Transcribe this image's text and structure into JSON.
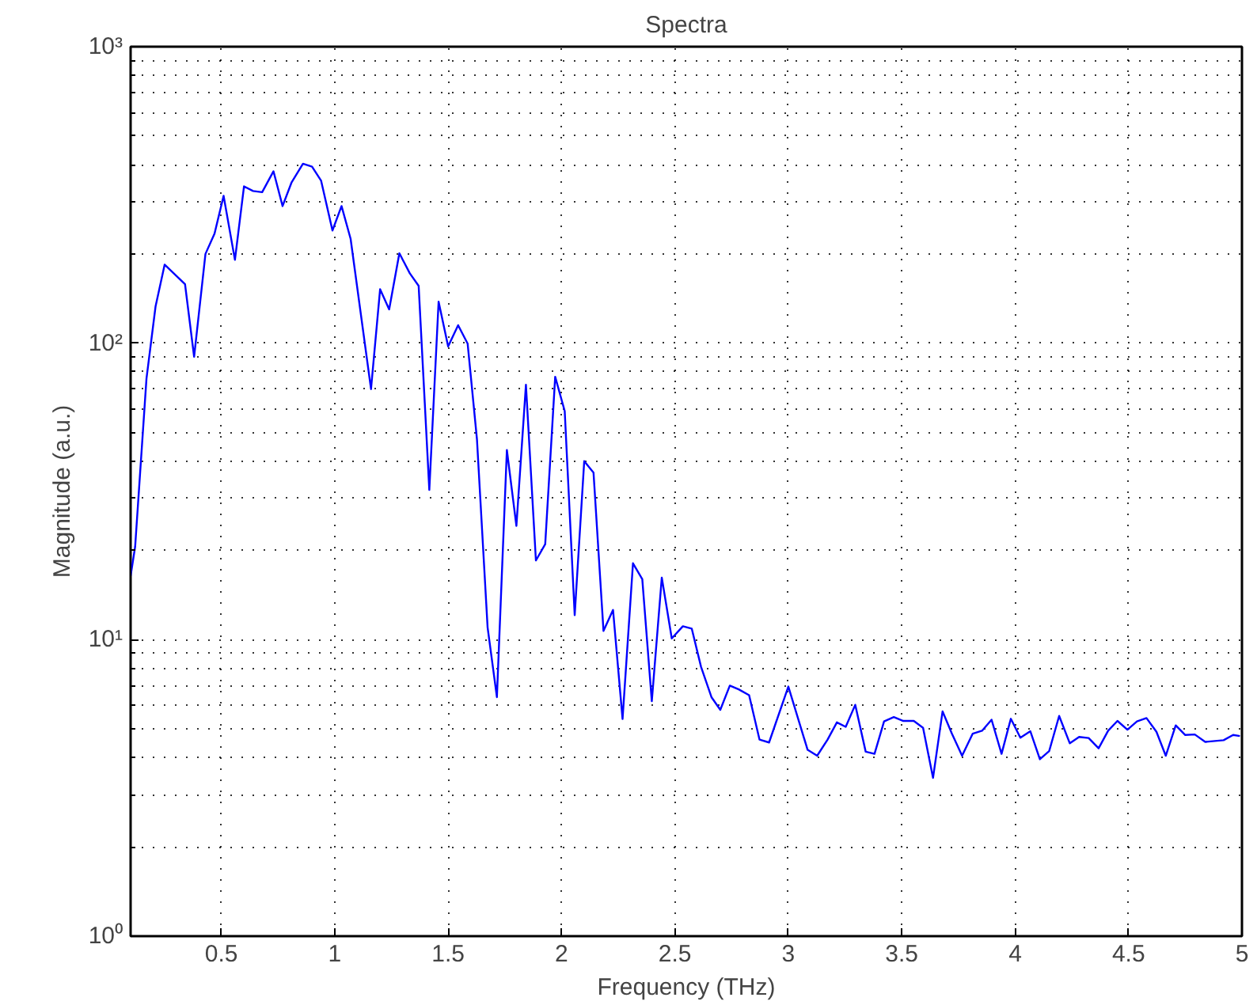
{
  "chart_data": {
    "type": "line",
    "title": "Spectra",
    "xlabel": "Frequency (THz)",
    "ylabel": "Magnitude (a.u.)",
    "log": "y",
    "grid": true,
    "marker": "none",
    "line_style": "solid",
    "xlim": [
      0.1,
      5
    ],
    "ylim": [
      1,
      1000
    ],
    "xticks": [
      0.5,
      1,
      1.5,
      2,
      2.5,
      3,
      3.5,
      4,
      4.5,
      5
    ],
    "yticks": [
      {
        "value": 1,
        "label": "10⁰"
      },
      {
        "value": 10,
        "label": "10¹"
      },
      {
        "value": 100,
        "label": "10²"
      },
      {
        "value": 1000,
        "label": "10³"
      }
    ],
    "series": [
      {
        "color": "#0000ff",
        "x": [
          0.1,
          0.12,
          0.17,
          0.21,
          0.25,
          0.34,
          0.38,
          0.43,
          0.47,
          0.51,
          0.56,
          0.6,
          0.64,
          0.68,
          0.73,
          0.77,
          0.81,
          0.86,
          0.9,
          0.94,
          0.99,
          1.03,
          1.07,
          1.16,
          1.2,
          1.24,
          1.285,
          1.331,
          1.37,
          1.417,
          1.458,
          1.5,
          1.544,
          1.586,
          1.627,
          1.674,
          1.715,
          1.759,
          1.801,
          1.843,
          1.887,
          1.928,
          1.972,
          2.014,
          2.058,
          2.1,
          2.141,
          2.185,
          2.227,
          2.269,
          2.315,
          2.356,
          2.398,
          2.442,
          2.486,
          2.535,
          2.574,
          2.615,
          2.661,
          2.7,
          2.742,
          2.781,
          2.827,
          2.873,
          2.915,
          3.0,
          3.085,
          3.127,
          3.173,
          3.214,
          3.253,
          3.295,
          3.341,
          3.38,
          3.422,
          3.465,
          3.507,
          3.553,
          3.594,
          3.638,
          3.68,
          3.721,
          3.766,
          3.813,
          3.854,
          3.896,
          3.94,
          3.981,
          4.023,
          4.067,
          4.109,
          4.15,
          4.194,
          4.241,
          4.282,
          4.324,
          4.368,
          4.41,
          4.451,
          4.495,
          4.537,
          4.579,
          4.623,
          4.664,
          4.708,
          4.75,
          4.792,
          4.838,
          4.919,
          4.961,
          4.991
        ],
        "values": [
          16.4,
          20.6,
          76,
          133,
          184,
          158,
          90,
          200,
          234,
          314,
          191,
          338,
          326,
          323,
          380,
          290,
          349,
          403,
          394,
          353,
          240,
          290,
          225,
          70,
          152,
          130,
          201,
          172,
          156,
          32,
          138,
          97.5,
          115,
          99.6,
          47.5,
          11.0,
          6.4,
          43.6,
          24.2,
          72.4,
          18.5,
          21,
          77,
          59,
          12.1,
          40,
          36.6,
          10.7,
          12.6,
          5.4,
          18.1,
          16,
          6.2,
          16.2,
          10.1,
          11.1,
          10.9,
          8.1,
          6.4,
          5.8,
          7.0,
          6.8,
          6.5,
          4.6,
          4.5,
          6.95,
          4.25,
          4.06,
          4.6,
          5.26,
          5.08,
          6.03,
          4.19,
          4.12,
          5.3,
          5.48,
          5.32,
          5.32,
          5.04,
          3.42,
          5.73,
          4.82,
          4.06,
          4.82,
          4.93,
          5.37,
          4.12,
          5.41,
          4.67,
          4.91,
          3.95,
          4.21,
          5.53,
          4.47,
          4.7,
          4.66,
          4.3,
          4.93,
          5.32,
          4.97,
          5.3,
          5.44,
          4.89,
          4.06,
          5.14,
          4.77,
          4.79,
          4.52,
          4.58,
          4.77,
          4.73
        ]
      }
    ]
  }
}
